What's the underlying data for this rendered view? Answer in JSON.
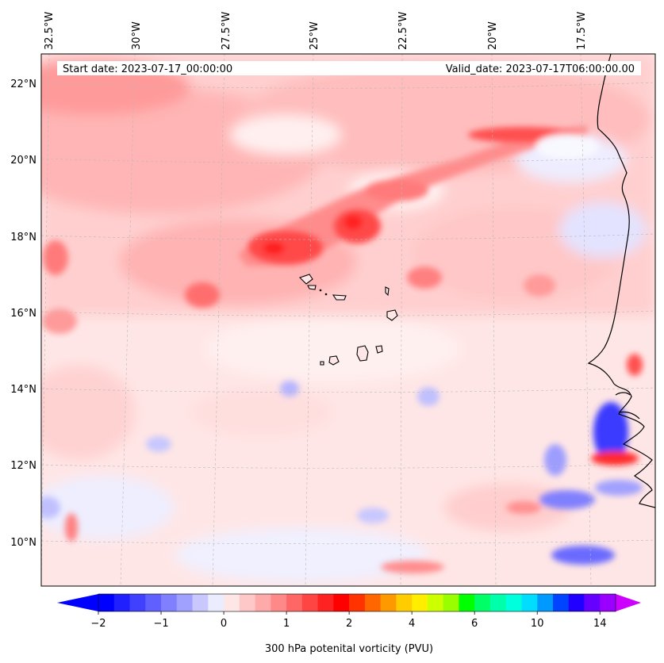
{
  "header": {
    "start_date": "Start date: 2023-07-17_00:00:00",
    "valid_date": "Valid_date: 2023-07-17T06:00:00.00"
  },
  "map": {
    "lon_labels": [
      "32.5°W",
      "30°W",
      "27.5°W",
      "25°W",
      "22.5°W",
      "20°W",
      "17.5°W"
    ],
    "lat_labels": [
      "22°N",
      "20°N",
      "18°N",
      "16°N",
      "14°N",
      "12°N",
      "10°N"
    ],
    "colors": {
      "very_light_red": "#ffe6e6",
      "light_red": "#ffc2c2",
      "mid_red": "#ff8c8c",
      "strong_red": "#ff3030",
      "light_blue": "#e8e8ff",
      "mid_blue": "#9d9dff",
      "strong_blue": "#2a2aff",
      "coastline": "#000000",
      "gridline": "#b0b0b0"
    }
  },
  "colorbar": {
    "label": "300 hPa potenital vorticity (PVU)",
    "tick_labels": [
      "−2",
      "−1",
      "0",
      "1",
      "2",
      "4",
      "6",
      "10",
      "14"
    ],
    "colors": [
      "#0000ff",
      "#2020ff",
      "#4040ff",
      "#6060ff",
      "#8080ff",
      "#a0a0ff",
      "#c8c8ff",
      "#ececff",
      "#ffe6e6",
      "#ffc8c8",
      "#ffaaaa",
      "#ff8888",
      "#ff6666",
      "#ff4444",
      "#ff2222",
      "#ff0000",
      "#ff3300",
      "#ff6600",
      "#ff9900",
      "#ffcc00",
      "#ffee00",
      "#ccff00",
      "#99ff00",
      "#00ff00",
      "#00ff66",
      "#00ffaa",
      "#00ffdd",
      "#00ddff",
      "#0099ff",
      "#0044ff",
      "#2200ff",
      "#6600ff",
      "#9900ff"
    ],
    "under_color": "#0000ff",
    "over_color": "#cc00ff"
  }
}
